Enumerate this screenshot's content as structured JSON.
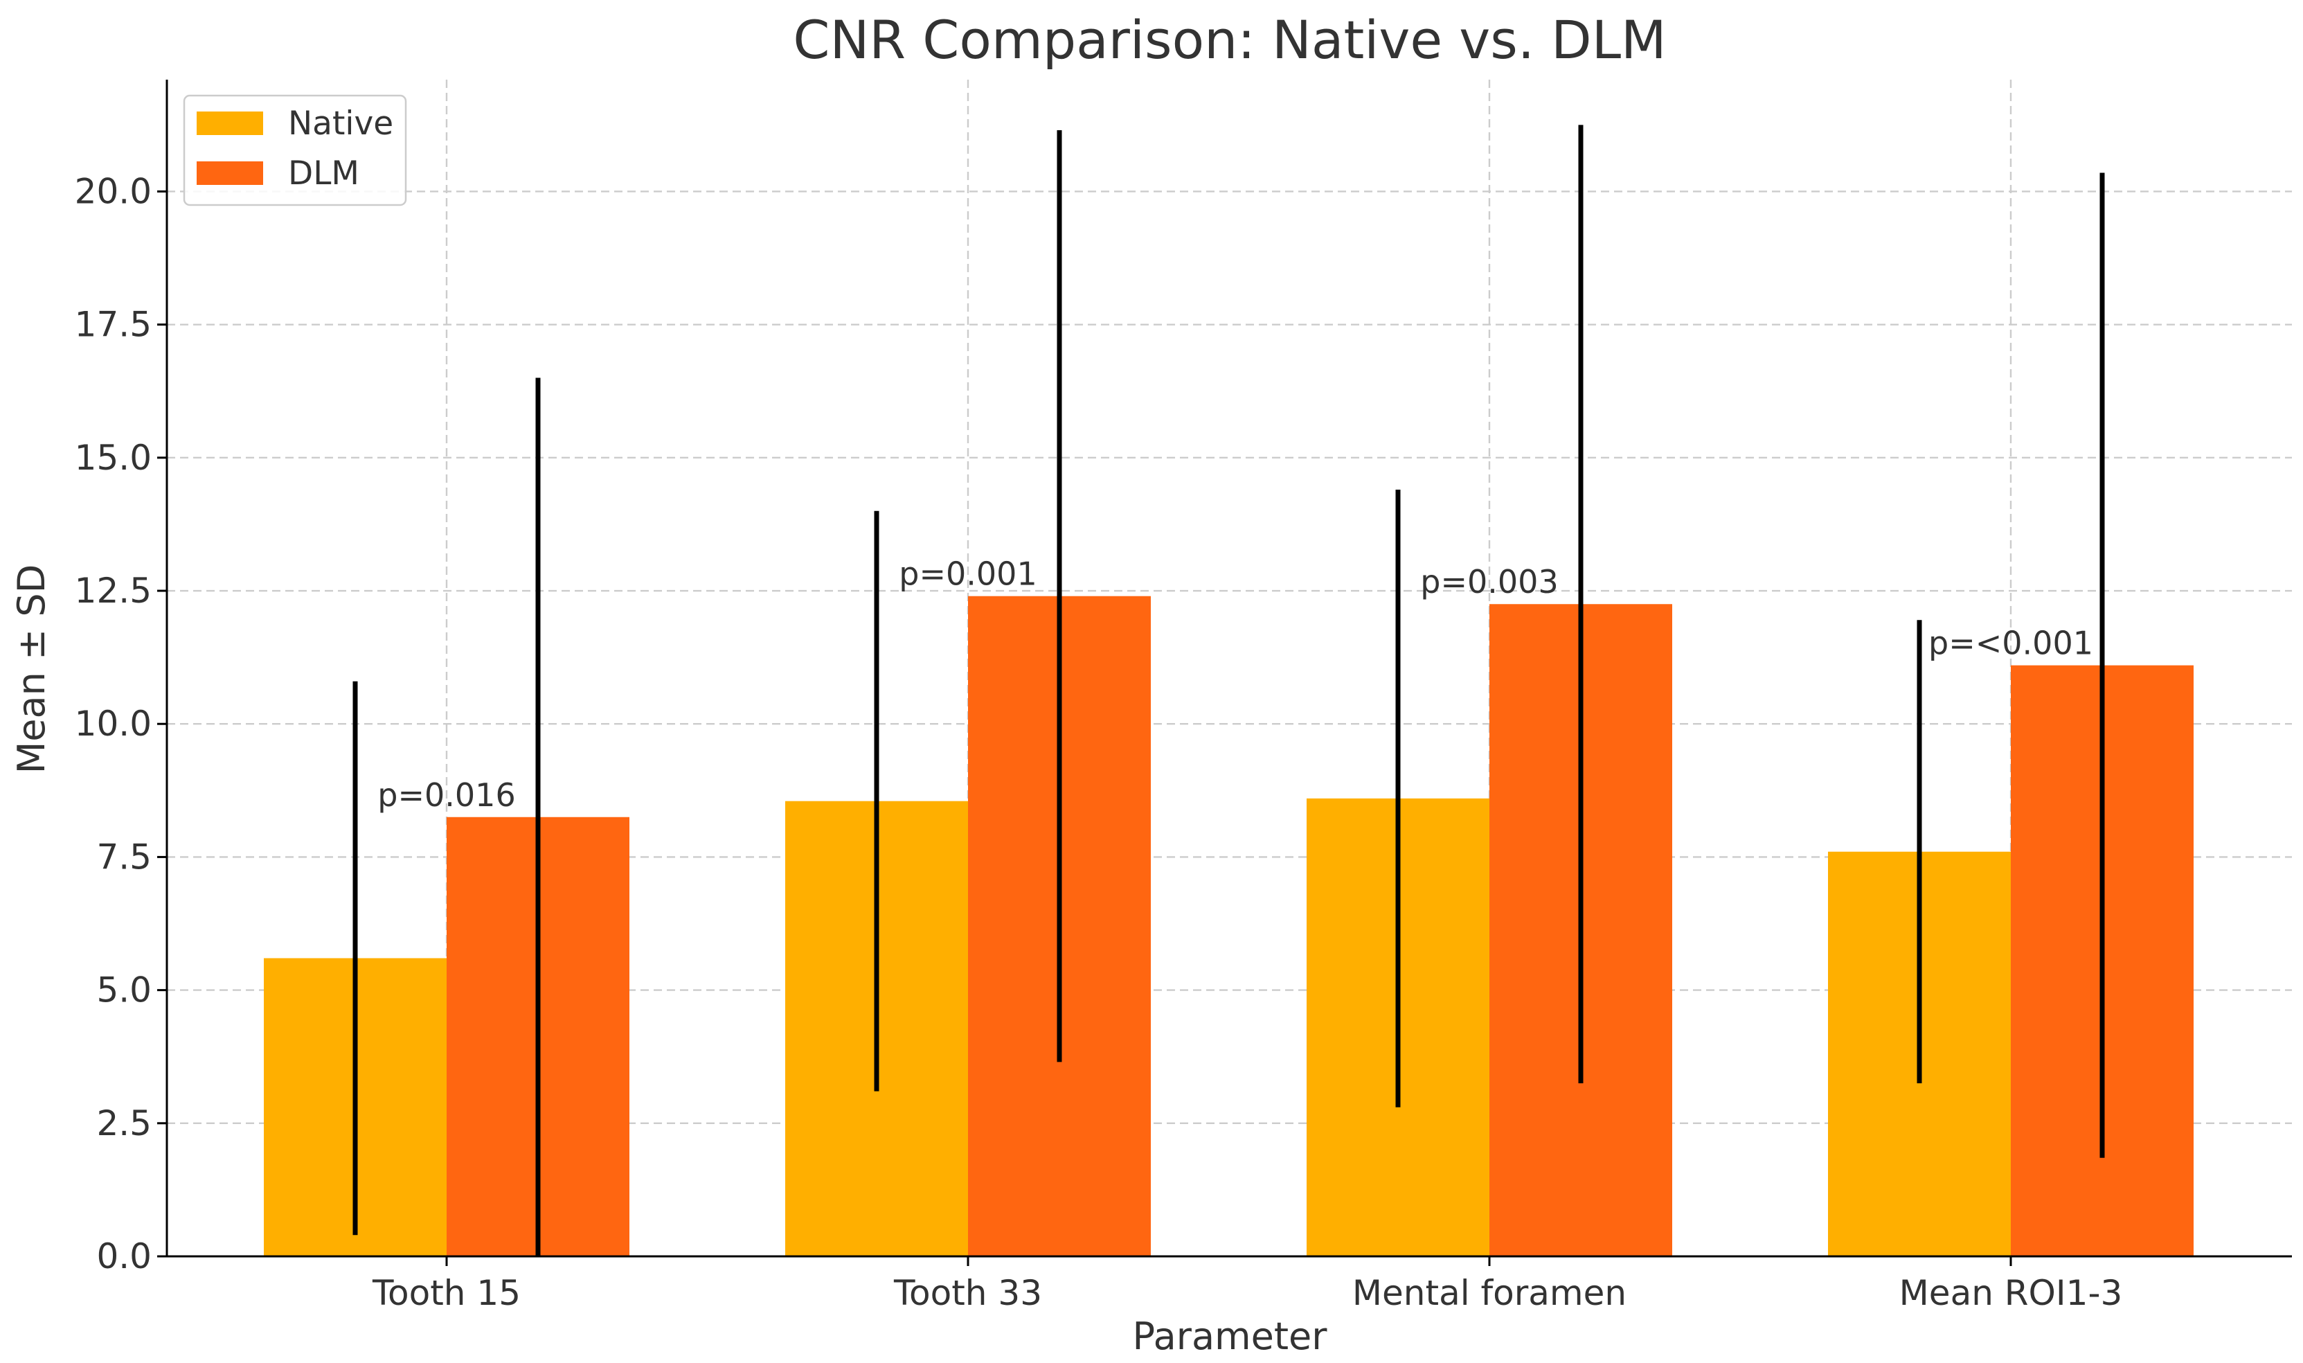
{
  "chart_data": {
    "type": "bar",
    "title": "CNR Comparison: Native vs. DLM",
    "xlabel": "Parameter",
    "ylabel": "Mean ± SD",
    "categories": [
      "Tooth 15",
      "Tooth 33",
      "Mental foramen",
      "Mean ROI1-3"
    ],
    "series": [
      {
        "name": "Native",
        "color": "#FFAF00",
        "values": [
          5.6,
          8.55,
          8.6,
          7.6
        ],
        "sd": [
          5.2,
          5.45,
          5.8,
          4.35
        ]
      },
      {
        "name": "DLM",
        "color": "#FF6611",
        "values": [
          8.25,
          12.4,
          12.25,
          11.1
        ],
        "sd": [
          8.25,
          8.75,
          9.0,
          9.25
        ]
      }
    ],
    "p_values": [
      "p=0.016",
      "p=0.001",
      "p=0.003",
      "p=<0.001"
    ],
    "ylim": [
      0,
      22.1
    ],
    "yticks": [
      0.0,
      2.5,
      5.0,
      7.5,
      10.0,
      12.5,
      15.0,
      17.5,
      20.0
    ],
    "ytick_labels": [
      "0.0",
      "2.5",
      "5.0",
      "7.5",
      "10.0",
      "12.5",
      "15.0",
      "17.5",
      "20.0"
    ],
    "grid": true,
    "legend_position": "top-left"
  }
}
